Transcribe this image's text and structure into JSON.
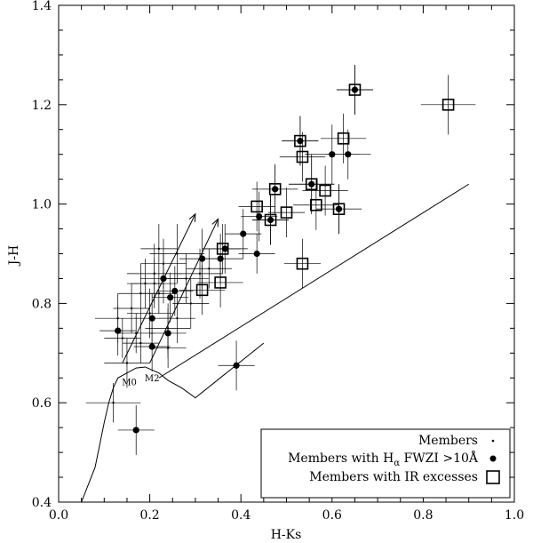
{
  "chart_data": {
    "type": "scatter",
    "xlabel": "H-Ks",
    "ylabel": "J-H",
    "xlim": [
      0.0,
      1.0
    ],
    "ylim": [
      0.4,
      1.4
    ],
    "x_ticks": [
      0.0,
      0.2,
      0.4,
      0.6,
      0.8,
      1.0
    ],
    "x_tick_labels": [
      "0.0",
      "0.2",
      "0.4",
      "0.6",
      "0.8",
      "1.0"
    ],
    "y_ticks": [
      0.4,
      0.6,
      0.8,
      1.0,
      1.2,
      1.4
    ],
    "y_tick_labels": [
      "0.4",
      "0.6",
      "0.8",
      "1.0",
      "1.2",
      "1.4"
    ],
    "legend_position": "bottom-right",
    "legend": [
      {
        "label": "Members",
        "marker": "dot"
      },
      {
        "label": "Members with H",
        "sub": "α",
        "label_tail": " FWZI >10Å",
        "marker": "filled-circle"
      },
      {
        "label": "Members with IR excesses",
        "marker": "open-square"
      }
    ],
    "annotations": [
      {
        "text": "M0",
        "x": 0.155,
        "y": 0.635
      },
      {
        "text": "M2",
        "x": 0.205,
        "y": 0.643
      }
    ],
    "dwarf_locus": {
      "x": [
        0.05,
        0.08,
        0.1,
        0.11,
        0.12,
        0.13,
        0.15,
        0.17,
        0.19,
        0.2,
        0.21,
        0.22,
        0.24,
        0.27,
        0.3,
        0.45
      ],
      "y": [
        0.4,
        0.47,
        0.56,
        0.6,
        0.63,
        0.65,
        0.66,
        0.67,
        0.672,
        0.668,
        0.664,
        0.66,
        0.645,
        0.63,
        0.61,
        0.72
      ]
    },
    "ctts_locus": {
      "x": [
        0.22,
        0.9
      ],
      "y": [
        0.65,
        1.04
      ]
    },
    "reddening_vectors": [
      {
        "x": [
          0.14,
          0.3
        ],
        "y": [
          0.68,
          0.98
        ]
      },
      {
        "x": [
          0.2,
          0.35
        ],
        "y": [
          0.68,
          0.97
        ]
      }
    ],
    "series": [
      {
        "name": "Members",
        "points": [
          {
            "x": 0.13,
            "y": 0.77,
            "xerr": 0.05,
            "yerr": 0.05
          },
          {
            "x": 0.16,
            "y": 0.79,
            "xerr": 0.04,
            "yerr": 0.05
          },
          {
            "x": 0.18,
            "y": 0.82,
            "xerr": 0.05,
            "yerr": 0.06
          },
          {
            "x": 0.19,
            "y": 0.84,
            "xerr": 0.04,
            "yerr": 0.05
          },
          {
            "x": 0.21,
            "y": 0.86,
            "xerr": 0.06,
            "yerr": 0.06
          },
          {
            "x": 0.23,
            "y": 0.88,
            "xerr": 0.05,
            "yerr": 0.05
          },
          {
            "x": 0.26,
            "y": 0.9,
            "xerr": 0.06,
            "yerr": 0.06
          },
          {
            "x": 0.28,
            "y": 0.85,
            "xerr": 0.05,
            "yerr": 0.05
          },
          {
            "x": 0.29,
            "y": 0.8,
            "xerr": 0.04,
            "yerr": 0.05
          },
          {
            "x": 0.22,
            "y": 0.82,
            "xerr": 0.04,
            "yerr": 0.04
          },
          {
            "x": 0.17,
            "y": 0.74,
            "xerr": 0.04,
            "yerr": 0.04
          },
          {
            "x": 0.2,
            "y": 0.78,
            "xerr": 0.05,
            "yerr": 0.05
          },
          {
            "x": 0.24,
            "y": 0.75,
            "xerr": 0.05,
            "yerr": 0.05
          },
          {
            "x": 0.26,
            "y": 0.77,
            "xerr": 0.04,
            "yerr": 0.05
          },
          {
            "x": 0.31,
            "y": 0.86,
            "xerr": 0.05,
            "yerr": 0.05
          },
          {
            "x": 0.33,
            "y": 0.87,
            "xerr": 0.05,
            "yerr": 0.04
          },
          {
            "x": 0.15,
            "y": 0.68,
            "xerr": 0.05,
            "yerr": 0.05
          },
          {
            "x": 0.24,
            "y": 0.71,
            "xerr": 0.04,
            "yerr": 0.04
          },
          {
            "x": 0.18,
            "y": 0.72,
            "xerr": 0.04,
            "yerr": 0.04
          },
          {
            "x": 0.22,
            "y": 0.91,
            "xerr": 0.04,
            "yerr": 0.05
          },
          {
            "x": 0.21,
            "y": 0.84,
            "xerr": 0.05,
            "yerr": 0.05
          },
          {
            "x": 0.14,
            "y": 0.73,
            "xerr": 0.04,
            "yerr": 0.04
          },
          {
            "x": 0.12,
            "y": 0.6,
            "xerr": 0.06,
            "yerr": 0.04
          }
        ]
      },
      {
        "name": "Members with Hα FWZI >10Å",
        "points": [
          {
            "x": 0.13,
            "y": 0.745,
            "xerr": 0.04,
            "yerr": 0.05
          },
          {
            "x": 0.17,
            "y": 0.545,
            "xerr": 0.04,
            "yerr": 0.05
          },
          {
            "x": 0.205,
            "y": 0.713,
            "xerr": 0.04,
            "yerr": 0.05
          },
          {
            "x": 0.205,
            "y": 0.77,
            "xerr": 0.04,
            "yerr": 0.05
          },
          {
            "x": 0.23,
            "y": 0.85,
            "xerr": 0.05,
            "yerr": 0.05
          },
          {
            "x": 0.24,
            "y": 0.74,
            "xerr": 0.04,
            "yerr": 0.05
          },
          {
            "x": 0.245,
            "y": 0.812,
            "xerr": 0.04,
            "yerr": 0.05
          },
          {
            "x": 0.255,
            "y": 0.825,
            "xerr": 0.04,
            "yerr": 0.05
          },
          {
            "x": 0.315,
            "y": 0.89,
            "xerr": 0.05,
            "yerr": 0.06
          },
          {
            "x": 0.355,
            "y": 0.89,
            "xerr": 0.05,
            "yerr": 0.05
          },
          {
            "x": 0.365,
            "y": 0.91,
            "xerr": 0.05,
            "yerr": 0.05
          },
          {
            "x": 0.39,
            "y": 0.675,
            "xerr": 0.04,
            "yerr": 0.05
          },
          {
            "x": 0.405,
            "y": 0.94,
            "xerr": 0.04,
            "yerr": 0.05
          },
          {
            "x": 0.435,
            "y": 0.9,
            "xerr": 0.04,
            "yerr": 0.04
          },
          {
            "x": 0.44,
            "y": 0.975,
            "xerr": 0.04,
            "yerr": 0.05
          },
          {
            "x": 0.465,
            "y": 0.968,
            "xerr": 0.04,
            "yerr": 0.05
          },
          {
            "x": 0.475,
            "y": 1.03,
            "xerr": 0.05,
            "yerr": 0.05
          },
          {
            "x": 0.53,
            "y": 1.127,
            "xerr": 0.04,
            "yerr": 0.05
          },
          {
            "x": 0.555,
            "y": 1.04,
            "xerr": 0.05,
            "yerr": 0.06
          },
          {
            "x": 0.6,
            "y": 1.1,
            "xerr": 0.06,
            "yerr": 0.06
          },
          {
            "x": 0.615,
            "y": 0.99,
            "xerr": 0.05,
            "yerr": 0.05
          },
          {
            "x": 0.635,
            "y": 1.1,
            "xerr": 0.05,
            "yerr": 0.05
          },
          {
            "x": 0.65,
            "y": 1.23,
            "xerr": 0.04,
            "yerr": 0.05
          }
        ]
      },
      {
        "name": "Members with IR excesses",
        "points": [
          {
            "x": 0.315,
            "y": 0.827,
            "xerr": 0.05,
            "yerr": 0.05
          },
          {
            "x": 0.355,
            "y": 0.842,
            "xerr": 0.05,
            "yerr": 0.05
          },
          {
            "x": 0.36,
            "y": 0.91,
            "xerr": 0.04,
            "yerr": 0.05
          },
          {
            "x": 0.435,
            "y": 0.995,
            "xerr": 0.04,
            "yerr": 0.05
          },
          {
            "x": 0.475,
            "y": 1.03,
            "xerr": 0.05,
            "yerr": 0.05
          },
          {
            "x": 0.465,
            "y": 0.968,
            "xerr": 0.04,
            "yerr": 0.05
          },
          {
            "x": 0.5,
            "y": 0.983,
            "xerr": 0.04,
            "yerr": 0.05
          },
          {
            "x": 0.53,
            "y": 1.127,
            "xerr": 0.04,
            "yerr": 0.05
          },
          {
            "x": 0.535,
            "y": 1.095,
            "xerr": 0.05,
            "yerr": 0.05
          },
          {
            "x": 0.535,
            "y": 0.88,
            "xerr": 0.04,
            "yerr": 0.05
          },
          {
            "x": 0.555,
            "y": 1.04,
            "xerr": 0.05,
            "yerr": 0.06
          },
          {
            "x": 0.565,
            "y": 0.998,
            "xerr": 0.05,
            "yerr": 0.05
          },
          {
            "x": 0.585,
            "y": 1.027,
            "xerr": 0.05,
            "yerr": 0.05
          },
          {
            "x": 0.615,
            "y": 0.99,
            "xerr": 0.05,
            "yerr": 0.05
          },
          {
            "x": 0.625,
            "y": 1.132,
            "xerr": 0.05,
            "yerr": 0.05
          },
          {
            "x": 0.65,
            "y": 1.23,
            "xerr": 0.04,
            "yerr": 0.05
          },
          {
            "x": 0.855,
            "y": 1.2,
            "xerr": 0.06,
            "yerr": 0.06
          }
        ]
      }
    ]
  }
}
